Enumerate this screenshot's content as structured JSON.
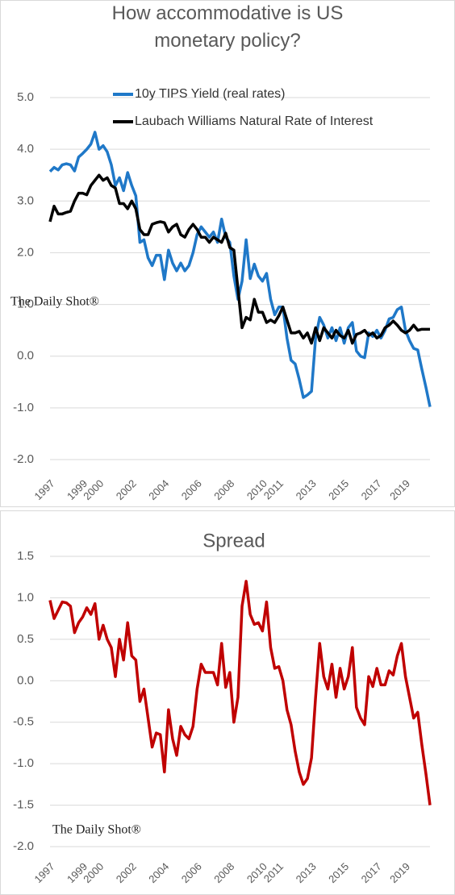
{
  "chart_data": [
    {
      "type": "line",
      "title": "How accommodative is US monetary policy?",
      "watermark": "The Daily Shot®",
      "categories": [
        "1997",
        null,
        null,
        null,
        null,
        null,
        null,
        null,
        "1999",
        null,
        null,
        null,
        "2000",
        null,
        null,
        null,
        null,
        null,
        null,
        null,
        "2002",
        null,
        null,
        null,
        null,
        null,
        null,
        null,
        "2004",
        null,
        null,
        null,
        null,
        null,
        null,
        null,
        "2006",
        null,
        null,
        null,
        null,
        null,
        null,
        null,
        "2008",
        null,
        null,
        null,
        null,
        null,
        null,
        null,
        "2010",
        null,
        null,
        null,
        "2011",
        null,
        null,
        null,
        null,
        null,
        null,
        null,
        "2013",
        null,
        null,
        null,
        null,
        null,
        null,
        null,
        "2015",
        null,
        null,
        null,
        null,
        null,
        null,
        null,
        "2017",
        null,
        null,
        null,
        null,
        null,
        null,
        "2019",
        null,
        null,
        null,
        null,
        null,
        null
      ],
      "ylim": [
        -2.0,
        5.0
      ],
      "yticks": [
        {
          "value": 5.0,
          "label": "5.0"
        },
        {
          "value": 4.0,
          "label": "4.0"
        },
        {
          "value": 3.0,
          "label": "3.0"
        },
        {
          "value": 2.0,
          "label": "2.0"
        },
        {
          "value": 1.0,
          "label": "1.0"
        },
        {
          "value": 0.0,
          "label": "0.0"
        },
        {
          "value": -1.0,
          "label": "-1.0"
        },
        {
          "value": -2.0,
          "label": "-2.0"
        }
      ],
      "grid": true,
      "series": [
        {
          "name": "10y TIPS Yield (real rates)",
          "color": "#1f78c8",
          "values": [
            3.57,
            3.65,
            3.6,
            3.7,
            3.72,
            3.7,
            3.58,
            3.85,
            3.92,
            4.0,
            4.1,
            4.33,
            4.0,
            4.07,
            3.95,
            3.7,
            3.3,
            3.45,
            3.2,
            3.55,
            3.3,
            3.1,
            2.2,
            2.25,
            1.9,
            1.75,
            1.95,
            1.95,
            1.48,
            2.05,
            1.8,
            1.65,
            1.8,
            1.65,
            1.75,
            2.0,
            2.35,
            2.5,
            2.4,
            2.3,
            2.4,
            2.2,
            2.65,
            2.3,
            2.2,
            1.55,
            1.1,
            1.45,
            2.25,
            1.5,
            1.78,
            1.55,
            1.45,
            1.6,
            1.1,
            0.8,
            0.95,
            0.95,
            0.35,
            -0.08,
            -0.15,
            -0.45,
            -0.8,
            -0.75,
            -0.68,
            0.35,
            0.75,
            0.6,
            0.35,
            0.55,
            0.3,
            0.55,
            0.25,
            0.55,
            0.65,
            0.1,
            0.0,
            -0.03,
            0.45,
            0.38,
            0.5,
            0.35,
            0.5,
            0.72,
            0.75,
            0.9,
            0.95,
            0.5,
            0.3,
            0.15,
            0.12,
            -0.25,
            -0.6,
            -0.98
          ]
        },
        {
          "name": "Laubach Williams Natural Rate of Interest",
          "color": "#000000",
          "values": [
            2.6,
            2.9,
            2.75,
            2.75,
            2.78,
            2.8,
            3.0,
            3.15,
            3.15,
            3.12,
            3.3,
            3.4,
            3.5,
            3.4,
            3.45,
            3.3,
            3.25,
            2.95,
            2.95,
            2.85,
            3.0,
            2.85,
            2.45,
            2.35,
            2.35,
            2.55,
            2.58,
            2.6,
            2.58,
            2.4,
            2.5,
            2.55,
            2.35,
            2.3,
            2.45,
            2.55,
            2.45,
            2.3,
            2.3,
            2.2,
            2.3,
            2.25,
            2.2,
            2.38,
            2.1,
            2.05,
            1.3,
            0.55,
            0.75,
            0.7,
            1.1,
            0.85,
            0.85,
            0.65,
            0.7,
            0.65,
            0.78,
            0.95,
            0.7,
            0.45,
            0.45,
            0.48,
            0.35,
            0.45,
            0.25,
            0.55,
            0.3,
            0.55,
            0.45,
            0.35,
            0.5,
            0.4,
            0.35,
            0.5,
            0.25,
            0.42,
            0.45,
            0.5,
            0.4,
            0.45,
            0.35,
            0.4,
            0.55,
            0.6,
            0.68,
            0.6,
            0.5,
            0.45,
            0.5,
            0.6,
            0.5,
            0.52,
            0.52,
            0.52
          ]
        }
      ]
    },
    {
      "type": "line",
      "title": "Spread",
      "watermark": "The Daily Shot®",
      "categories": [
        "1997",
        null,
        null,
        null,
        null,
        null,
        null,
        null,
        "1999",
        null,
        null,
        null,
        "2000",
        null,
        null,
        null,
        null,
        null,
        null,
        null,
        "2002",
        null,
        null,
        null,
        null,
        null,
        null,
        null,
        "2004",
        null,
        null,
        null,
        null,
        null,
        null,
        null,
        "2006",
        null,
        null,
        null,
        null,
        null,
        null,
        null,
        "2008",
        null,
        null,
        null,
        null,
        null,
        null,
        null,
        "2010",
        null,
        null,
        null,
        "2011",
        null,
        null,
        null,
        null,
        null,
        null,
        null,
        "2013",
        null,
        null,
        null,
        null,
        null,
        null,
        null,
        "2015",
        null,
        null,
        null,
        null,
        null,
        null,
        null,
        "2017",
        null,
        null,
        null,
        null,
        null,
        null,
        "2019",
        null,
        null,
        null,
        null,
        null,
        null
      ],
      "ylim": [
        -2.0,
        1.5
      ],
      "yticks": [
        1.5,
        {
          "value": 1.0,
          "label": "1.0"
        },
        0.5,
        {
          "value": 0.0,
          "label": "0.0"
        },
        -0.5,
        {
          "value": -1.0,
          "label": "-1.0"
        },
        -1.5,
        {
          "value": -2.0,
          "label": "-2.0"
        }
      ],
      "grid": true,
      "series": [
        {
          "name": null,
          "color": "#c00000",
          "values": [
            0.97,
            0.75,
            0.85,
            0.95,
            0.94,
            0.9,
            0.58,
            0.7,
            0.77,
            0.88,
            0.8,
            0.93,
            0.5,
            0.67,
            0.5,
            0.4,
            0.05,
            0.5,
            0.25,
            0.7,
            0.3,
            0.25,
            -0.25,
            -0.1,
            -0.45,
            -0.8,
            -0.63,
            -0.65,
            -1.1,
            -0.35,
            -0.7,
            -0.9,
            -0.55,
            -0.65,
            -0.7,
            -0.55,
            -0.1,
            0.2,
            0.1,
            0.1,
            0.1,
            -0.05,
            0.45,
            -0.08,
            0.1,
            -0.5,
            -0.2,
            0.9,
            1.2,
            0.8,
            0.68,
            0.7,
            0.6,
            0.95,
            0.4,
            0.15,
            0.17,
            0.0,
            -0.35,
            -0.53,
            -0.85,
            -1.1,
            -1.25,
            -1.18,
            -0.93,
            -0.2,
            0.45,
            0.05,
            -0.1,
            0.2,
            -0.2,
            0.15,
            -0.1,
            0.05,
            0.4,
            -0.32,
            -0.45,
            -0.53,
            0.05,
            -0.07,
            0.15,
            -0.05,
            -0.05,
            0.12,
            0.07,
            0.3,
            0.45,
            0.05,
            -0.2,
            -0.45,
            -0.38,
            -0.77,
            -1.12,
            -1.5
          ]
        }
      ]
    }
  ]
}
